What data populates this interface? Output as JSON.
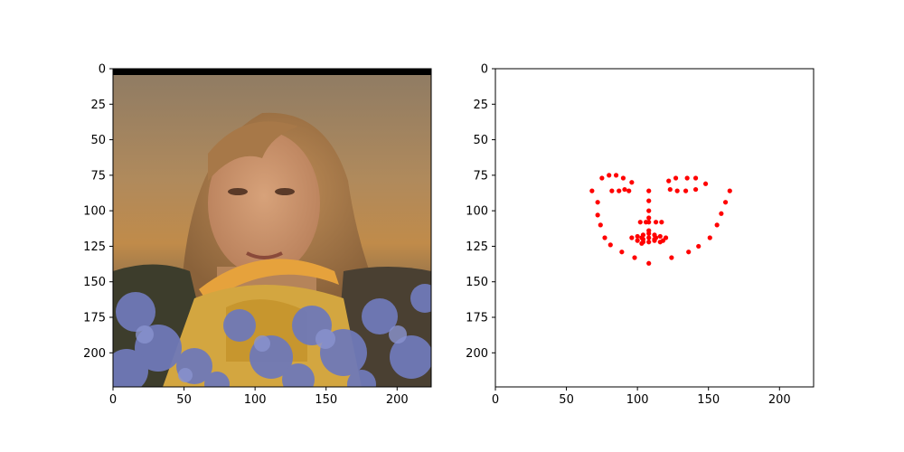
{
  "chart_data": [
    {
      "type": "image",
      "xlim": [
        0,
        224
      ],
      "ylim": [
        224,
        0
      ],
      "x_ticks": [
        "0",
        "50",
        "100",
        "150",
        "200"
      ],
      "y_ticks": [
        "0",
        "25",
        "50",
        "75",
        "100",
        "125",
        "150",
        "175",
        "200"
      ]
    },
    {
      "type": "scatter",
      "xlim": [
        0,
        224
      ],
      "ylim": [
        224,
        0
      ],
      "x_ticks": [
        "0",
        "50",
        "100",
        "150",
        "200"
      ],
      "y_ticks": [
        "0",
        "25",
        "50",
        "75",
        "100",
        "125",
        "150",
        "175",
        "200"
      ],
      "marker_color": "#ff0000",
      "points": [
        [
          68,
          86
        ],
        [
          72,
          94
        ],
        [
          72,
          103
        ],
        [
          74,
          110
        ],
        [
          77,
          119
        ],
        [
          81,
          124
        ],
        [
          89,
          129
        ],
        [
          98,
          133
        ],
        [
          108,
          137
        ],
        [
          124,
          133
        ],
        [
          136,
          129
        ],
        [
          143,
          125
        ],
        [
          151,
          119
        ],
        [
          156,
          110
        ],
        [
          159,
          102
        ],
        [
          162,
          94
        ],
        [
          165,
          86
        ],
        [
          75,
          77
        ],
        [
          80,
          75
        ],
        [
          85,
          75
        ],
        [
          90,
          77
        ],
        [
          96,
          80
        ],
        [
          122,
          79
        ],
        [
          127,
          77
        ],
        [
          135,
          77
        ],
        [
          141,
          77
        ],
        [
          148,
          81
        ],
        [
          108,
          86
        ],
        [
          108,
          93
        ],
        [
          108,
          100
        ],
        [
          108,
          105
        ],
        [
          102,
          108
        ],
        [
          106,
          108
        ],
        [
          108,
          108
        ],
        [
          113,
          108
        ],
        [
          117,
          108
        ],
        [
          82,
          86
        ],
        [
          87,
          86
        ],
        [
          91,
          85
        ],
        [
          94,
          86
        ],
        [
          123,
          85
        ],
        [
          128,
          86
        ],
        [
          134,
          86
        ],
        [
          141,
          85
        ],
        [
          96,
          119
        ],
        [
          100,
          118
        ],
        [
          104,
          117
        ],
        [
          108,
          116
        ],
        [
          112,
          117
        ],
        [
          116,
          118
        ],
        [
          120,
          119
        ],
        [
          116,
          122
        ],
        [
          112,
          121
        ],
        [
          108,
          122
        ],
        [
          104,
          122
        ],
        [
          100,
          121
        ],
        [
          103,
          119
        ],
        [
          108,
          119
        ],
        [
          113,
          119
        ],
        [
          104,
          120
        ],
        [
          112,
          120
        ],
        [
          108,
          114
        ],
        [
          103,
          123
        ],
        [
          118,
          121
        ]
      ]
    }
  ],
  "colors": {
    "axis": "#000000",
    "marker": "#ff0000"
  }
}
